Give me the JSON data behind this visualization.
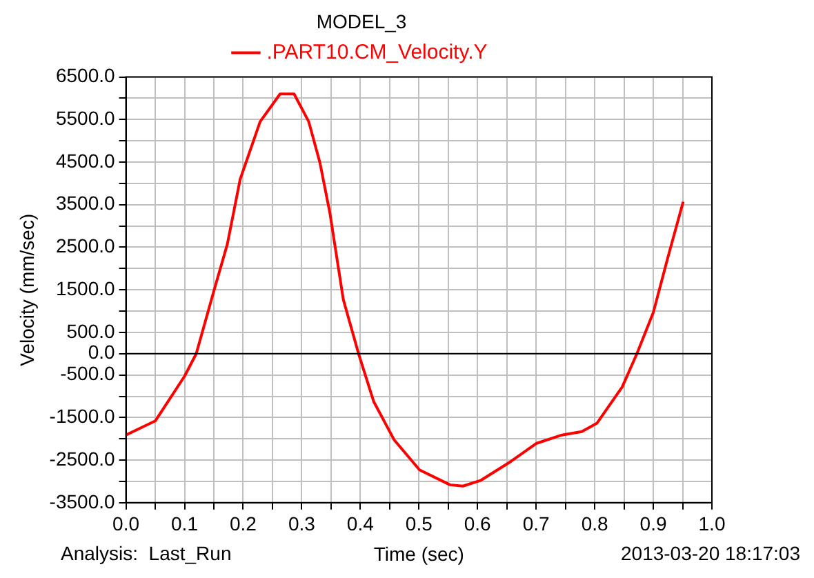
{
  "chart_data": {
    "type": "line",
    "title": "MODEL_3",
    "xlabel": "Time (sec)",
    "ylabel": "Velocity (mm/sec)",
    "annotations": [
      "Analysis:  Last_Run",
      "2013-03-20 18:17:03"
    ],
    "series": [
      {
        "name": ".PART10.CM_Velocity.Y",
        "color": "#ff0000",
        "x": [
          0,
          0.05,
          0.1,
          0.12,
          0.15,
          0.173,
          0.195,
          0.229,
          0.263,
          0.275,
          0.287,
          0.312,
          0.331,
          0.348,
          0.371,
          0.397,
          0.423,
          0.458,
          0.501,
          0.553,
          0.575,
          0.605,
          0.657,
          0.7,
          0.744,
          0.778,
          0.804,
          0.847,
          0.872,
          0.9,
          0.925,
          0.951
        ],
        "values": [
          -1910,
          -1580,
          -530,
          0,
          1470,
          2570,
          4100,
          5450,
          6100,
          6100,
          6100,
          5450,
          4490,
          3310,
          1270,
          0,
          -1130,
          -2030,
          -2730,
          -3080,
          -3110,
          -2980,
          -2530,
          -2110,
          -1910,
          -1830,
          -1630,
          -780,
          0,
          970,
          2270,
          3570
        ]
      }
    ],
    "xlim": [
      0,
      1
    ],
    "xticks": [
      {
        "value": 0,
        "label": "0.0"
      },
      {
        "value": 0.05,
        "label": null
      },
      {
        "value": 0.1,
        "label": "0.1"
      },
      {
        "value": 0.15,
        "label": null
      },
      {
        "value": 0.2,
        "label": "0.2"
      },
      {
        "value": 0.25,
        "label": null
      },
      {
        "value": 0.3,
        "label": "0.3"
      },
      {
        "value": 0.35,
        "label": null
      },
      {
        "value": 0.4,
        "label": "0.4"
      },
      {
        "value": 0.45,
        "label": null
      },
      {
        "value": 0.5,
        "label": "0.5"
      },
      {
        "value": 0.55,
        "label": null
      },
      {
        "value": 0.6,
        "label": "0.6"
      },
      {
        "value": 0.65,
        "label": null
      },
      {
        "value": 0.7,
        "label": "0.7"
      },
      {
        "value": 0.75,
        "label": null
      },
      {
        "value": 0.8,
        "label": "0.8"
      },
      {
        "value": 0.85,
        "label": null
      },
      {
        "value": 0.9,
        "label": "0.9"
      },
      {
        "value": 0.95,
        "label": null
      },
      {
        "value": 1,
        "label": "1.0"
      }
    ],
    "ylim": [
      -3500,
      6500
    ],
    "yticks": [
      {
        "value": 6500,
        "label": "6500.0"
      },
      {
        "value": 6000,
        "label": null
      },
      {
        "value": 5500,
        "label": "5500.0"
      },
      {
        "value": 5000,
        "label": null
      },
      {
        "value": 4500,
        "label": "4500.0"
      },
      {
        "value": 4000,
        "label": null
      },
      {
        "value": 3500,
        "label": "3500.0"
      },
      {
        "value": 3000,
        "label": null
      },
      {
        "value": 2500,
        "label": "2500.0"
      },
      {
        "value": 2000,
        "label": null
      },
      {
        "value": 1500,
        "label": "1500.0"
      },
      {
        "value": 1000,
        "label": null
      },
      {
        "value": 500,
        "label": "500.0"
      },
      {
        "value": 0,
        "label": "0.0"
      },
      {
        "value": -500,
        "label": "-500.0"
      },
      {
        "value": -1000,
        "label": null
      },
      {
        "value": -1500,
        "label": "-1500.0"
      },
      {
        "value": -2000,
        "label": null
      },
      {
        "value": -2500,
        "label": "-2500.0"
      },
      {
        "value": -3000,
        "label": null
      },
      {
        "value": -3500,
        "label": "-3500.0"
      }
    ],
    "ref_lines": [
      {
        "axis": "y",
        "value": 0,
        "color": "#000000"
      }
    ],
    "grid": true,
    "legend": "top",
    "marker": "none",
    "line_style": "solid"
  }
}
